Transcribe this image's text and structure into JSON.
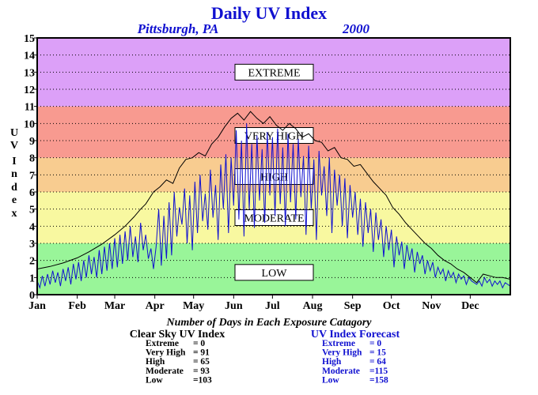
{
  "chart_data": {
    "type": "line",
    "title": "Daily UV Index",
    "location": "Pittsburgh, PA",
    "year": "2000",
    "ylabel": "UV Index",
    "ylim": [
      0,
      15
    ],
    "yticks": [
      "0",
      "1",
      "2",
      "3",
      "4",
      "5",
      "6",
      "7",
      "8",
      "9",
      "10",
      "11",
      "12",
      "13",
      "14",
      "15"
    ],
    "xlim": [
      0,
      366
    ],
    "months": [
      {
        "label": "Jan",
        "day": 0
      },
      {
        "label": "Feb",
        "day": 31
      },
      {
        "label": "Mar",
        "day": 60
      },
      {
        "label": "Apr",
        "day": 91
      },
      {
        "label": "May",
        "day": 121
      },
      {
        "label": "Jun",
        "day": 152
      },
      {
        "label": "Jul",
        "day": 182
      },
      {
        "label": "Aug",
        "day": 213
      },
      {
        "label": "Sep",
        "day": 244
      },
      {
        "label": "Oct",
        "day": 274
      },
      {
        "label": "Nov",
        "day": 305
      },
      {
        "label": "Dec",
        "day": 335
      }
    ],
    "grid": true,
    "bands": [
      {
        "label": "LOW",
        "from": 0,
        "to": 3,
        "color": "#99f599",
        "label_y": 1.3
      },
      {
        "label": "MODERATE",
        "from": 3,
        "to": 6,
        "color": "#f8f8a0",
        "label_y": 4.5
      },
      {
        "label": "HIGH",
        "from": 6,
        "to": 8,
        "color": "#f8cc90",
        "label_y": 6.9
      },
      {
        "label": "VERY HIGH",
        "from": 8,
        "to": 11,
        "color": "#f89a90",
        "label_y": 9.3
      },
      {
        "label": "EXTREME",
        "from": 11,
        "to": 15,
        "color": "#dca0f8",
        "label_y": 13.0
      }
    ],
    "series": [
      {
        "color": "#000000",
        "points": [
          [
            0,
            1.5
          ],
          [
            10,
            1.65
          ],
          [
            20,
            1.85
          ],
          [
            31,
            2.15
          ],
          [
            40,
            2.5
          ],
          [
            50,
            2.95
          ],
          [
            60,
            3.5
          ],
          [
            68,
            4.0
          ],
          [
            75,
            4.55
          ],
          [
            80,
            5.0
          ],
          [
            84,
            5.3
          ],
          [
            90,
            6.0
          ],
          [
            95,
            6.3
          ],
          [
            100,
            6.7
          ],
          [
            105,
            6.5
          ],
          [
            110,
            7.4
          ],
          [
            115,
            7.9
          ],
          [
            120,
            8.0
          ],
          [
            125,
            8.3
          ],
          [
            130,
            8.1
          ],
          [
            135,
            8.8
          ],
          [
            140,
            9.2
          ],
          [
            145,
            9.8
          ],
          [
            150,
            10.3
          ],
          [
            155,
            10.6
          ],
          [
            160,
            10.2
          ],
          [
            165,
            10.7
          ],
          [
            170,
            10.3
          ],
          [
            175,
            10.0
          ],
          [
            180,
            10.4
          ],
          [
            185,
            9.9
          ],
          [
            190,
            9.6
          ],
          [
            195,
            10.0
          ],
          [
            200,
            9.7
          ],
          [
            205,
            9.2
          ],
          [
            210,
            9.4
          ],
          [
            215,
            9.0
          ],
          [
            220,
            8.9
          ],
          [
            225,
            8.4
          ],
          [
            230,
            8.6
          ],
          [
            235,
            8.0
          ],
          [
            240,
            7.9
          ],
          [
            245,
            7.5
          ],
          [
            250,
            7.6
          ],
          [
            255,
            7.1
          ],
          [
            260,
            6.6
          ],
          [
            265,
            6.2
          ],
          [
            270,
            5.8
          ],
          [
            275,
            5.1
          ],
          [
            280,
            4.7
          ],
          [
            285,
            4.2
          ],
          [
            290,
            3.8
          ],
          [
            295,
            3.4
          ],
          [
            300,
            3.0
          ],
          [
            305,
            2.7
          ],
          [
            310,
            2.3
          ],
          [
            315,
            2.0
          ],
          [
            320,
            1.8
          ],
          [
            325,
            1.5
          ],
          [
            330,
            1.3
          ],
          [
            335,
            1.0
          ],
          [
            340,
            0.7
          ],
          [
            345,
            1.2
          ],
          [
            350,
            1.1
          ],
          [
            355,
            1.0
          ],
          [
            360,
            1.0
          ],
          [
            366,
            0.9
          ]
        ]
      },
      {
        "color": "#1010d0",
        "points": [
          [
            0,
            0.8
          ],
          [
            2,
            0.4
          ],
          [
            4,
            1.1
          ],
          [
            6,
            0.5
          ],
          [
            8,
            1.2
          ],
          [
            10,
            0.6
          ],
          [
            12,
            1.4
          ],
          [
            14,
            0.7
          ],
          [
            16,
            1.3
          ],
          [
            18,
            0.5
          ],
          [
            20,
            1.5
          ],
          [
            22,
            0.8
          ],
          [
            24,
            1.6
          ],
          [
            26,
            0.6
          ],
          [
            28,
            1.8
          ],
          [
            30,
            0.9
          ],
          [
            32,
            1.9
          ],
          [
            34,
            0.8
          ],
          [
            36,
            2.0
          ],
          [
            38,
            1.0
          ],
          [
            40,
            2.3
          ],
          [
            42,
            1.2
          ],
          [
            44,
            2.2
          ],
          [
            46,
            1.0
          ],
          [
            48,
            2.6
          ],
          [
            50,
            1.2
          ],
          [
            52,
            2.8
          ],
          [
            54,
            1.4
          ],
          [
            56,
            3.0
          ],
          [
            58,
            1.5
          ],
          [
            60,
            3.3
          ],
          [
            62,
            1.6
          ],
          [
            64,
            3.5
          ],
          [
            66,
            1.8
          ],
          [
            68,
            3.7
          ],
          [
            70,
            2.0
          ],
          [
            72,
            4.0
          ],
          [
            74,
            2.2
          ],
          [
            76,
            3.4
          ],
          [
            78,
            1.9
          ],
          [
            80,
            4.2
          ],
          [
            82,
            2.6
          ],
          [
            84,
            3.5
          ],
          [
            86,
            2.1
          ],
          [
            88,
            2.7
          ],
          [
            90,
            1.5
          ],
          [
            92,
            2.8
          ],
          [
            94,
            5.0
          ],
          [
            96,
            1.7
          ],
          [
            98,
            4.6
          ],
          [
            100,
            2.1
          ],
          [
            102,
            5.4
          ],
          [
            104,
            2.3
          ],
          [
            106,
            6.0
          ],
          [
            108,
            3.4
          ],
          [
            110,
            5.1
          ],
          [
            112,
            4.1
          ],
          [
            114,
            6.2
          ],
          [
            116,
            3.0
          ],
          [
            118,
            5.8
          ],
          [
            120,
            2.6
          ],
          [
            122,
            6.6
          ],
          [
            124,
            3.6
          ],
          [
            126,
            7.0
          ],
          [
            128,
            4.3
          ],
          [
            130,
            5.9
          ],
          [
            132,
            3.8
          ],
          [
            134,
            7.3
          ],
          [
            136,
            4.5
          ],
          [
            138,
            6.4
          ],
          [
            140,
            3.2
          ],
          [
            142,
            7.6
          ],
          [
            144,
            5.0
          ],
          [
            146,
            8.2
          ],
          [
            148,
            3.6
          ],
          [
            150,
            8.0
          ],
          [
            152,
            5.2
          ],
          [
            154,
            9.6
          ],
          [
            156,
            4.4
          ],
          [
            158,
            9.0
          ],
          [
            160,
            3.4
          ],
          [
            162,
            10.0
          ],
          [
            164,
            5.0
          ],
          [
            166,
            8.8
          ],
          [
            168,
            3.9
          ],
          [
            170,
            9.3
          ],
          [
            172,
            5.5
          ],
          [
            174,
            8.5
          ],
          [
            176,
            4.2
          ],
          [
            178,
            9.5
          ],
          [
            180,
            5.8
          ],
          [
            182,
            9.2
          ],
          [
            184,
            4.6
          ],
          [
            186,
            9.7
          ],
          [
            188,
            5.3
          ],
          [
            190,
            8.6
          ],
          [
            192,
            4.0
          ],
          [
            194,
            9.4
          ],
          [
            196,
            5.4
          ],
          [
            198,
            8.8
          ],
          [
            200,
            4.4
          ],
          [
            202,
            9.1
          ],
          [
            204,
            5.7
          ],
          [
            206,
            8.1
          ],
          [
            208,
            3.5
          ],
          [
            210,
            8.7
          ],
          [
            212,
            5.0
          ],
          [
            214,
            7.9
          ],
          [
            216,
            3.2
          ],
          [
            218,
            8.4
          ],
          [
            220,
            5.8
          ],
          [
            222,
            7.5
          ],
          [
            224,
            4.6
          ],
          [
            226,
            8.0
          ],
          [
            228,
            3.6
          ],
          [
            230,
            7.3
          ],
          [
            232,
            5.2
          ],
          [
            234,
            7.0
          ],
          [
            236,
            4.0
          ],
          [
            238,
            6.8
          ],
          [
            240,
            3.3
          ],
          [
            242,
            6.4
          ],
          [
            244,
            4.5
          ],
          [
            246,
            6.0
          ],
          [
            248,
            3.5
          ],
          [
            250,
            5.6
          ],
          [
            252,
            2.8
          ],
          [
            254,
            5.4
          ],
          [
            256,
            3.6
          ],
          [
            258,
            5.0
          ],
          [
            260,
            2.5
          ],
          [
            262,
            4.8
          ],
          [
            264,
            3.2
          ],
          [
            266,
            4.4
          ],
          [
            268,
            2.2
          ],
          [
            270,
            4.0
          ],
          [
            272,
            2.6
          ],
          [
            274,
            3.8
          ],
          [
            276,
            1.6
          ],
          [
            278,
            3.4
          ],
          [
            280,
            2.3
          ],
          [
            282,
            3.1
          ],
          [
            284,
            1.5
          ],
          [
            286,
            2.9
          ],
          [
            288,
            2.0
          ],
          [
            290,
            2.7
          ],
          [
            292,
            1.3
          ],
          [
            294,
            2.5
          ],
          [
            296,
            1.8
          ],
          [
            298,
            2.3
          ],
          [
            300,
            1.2
          ],
          [
            302,
            2.0
          ],
          [
            304,
            1.4
          ],
          [
            306,
            1.9
          ],
          [
            308,
            1.0
          ],
          [
            310,
            1.6
          ],
          [
            312,
            1.2
          ],
          [
            314,
            1.5
          ],
          [
            316,
            0.8
          ],
          [
            318,
            1.4
          ],
          [
            320,
            1.0
          ],
          [
            322,
            1.3
          ],
          [
            324,
            0.7
          ],
          [
            326,
            1.2
          ],
          [
            328,
            0.9
          ],
          [
            330,
            1.1
          ],
          [
            332,
            0.6
          ],
          [
            334,
            1.0
          ],
          [
            336,
            0.8
          ],
          [
            338,
            0.7
          ],
          [
            340,
            0.6
          ],
          [
            342,
            0.8
          ],
          [
            344,
            0.5
          ],
          [
            346,
            1.0
          ],
          [
            348,
            0.7
          ],
          [
            350,
            0.9
          ],
          [
            352,
            0.5
          ],
          [
            354,
            0.8
          ],
          [
            356,
            0.6
          ],
          [
            358,
            0.8
          ],
          [
            360,
            0.4
          ],
          [
            362,
            0.7
          ],
          [
            364,
            0.6
          ],
          [
            366,
            0.5
          ]
        ]
      }
    ],
    "summary": {
      "heading": "Number of Days in Each Exposure Catagory",
      "clear_sky": {
        "title": "Clear Sky UV Index",
        "rows": [
          {
            "label": "Extreme",
            "value": "=    0"
          },
          {
            "label": "Very High",
            "value": "= 91"
          },
          {
            "label": "High",
            "value": "= 65"
          },
          {
            "label": "Moderate",
            "value": "= 93"
          },
          {
            "label": "Low",
            "value": "=103"
          }
        ]
      },
      "forecast": {
        "title": "UV Index Forecast",
        "rows": [
          {
            "label": "Extreme",
            "value": "=    0"
          },
          {
            "label": "Very High",
            "value": "= 15"
          },
          {
            "label": "High",
            "value": "= 64"
          },
          {
            "label": "Moderate",
            "value": "=115"
          },
          {
            "label": "Low",
            "value": "=158"
          }
        ]
      }
    }
  }
}
